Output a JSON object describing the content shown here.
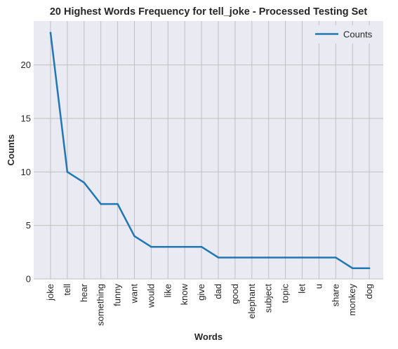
{
  "chart_data": {
    "type": "line",
    "title": "20 Highest Words Frequency for tell_joke - Processed Testing Set",
    "xlabel": "Words",
    "ylabel": "Counts",
    "categories": [
      "joke",
      "tell",
      "hear",
      "something",
      "funny",
      "want",
      "would",
      "like",
      "know",
      "give",
      "dad",
      "good",
      "elephant",
      "subject",
      "topic",
      "let",
      "u",
      "share",
      "monkey",
      "dog"
    ],
    "series": [
      {
        "name": "Counts",
        "values": [
          23,
          10,
          9,
          7,
          7,
          4,
          3,
          3,
          3,
          3,
          2,
          2,
          2,
          2,
          2,
          2,
          2,
          2,
          1,
          1
        ]
      }
    ],
    "ylim": [
      0,
      24.1
    ],
    "yticks": [
      0,
      5,
      10,
      15,
      20
    ],
    "grid": true,
    "legend_position": "top-right",
    "colors": {
      "line": "#1f77b4",
      "plot_background": "#eaeaf2",
      "grid": "#c0c0c0",
      "text": "#262626"
    }
  }
}
